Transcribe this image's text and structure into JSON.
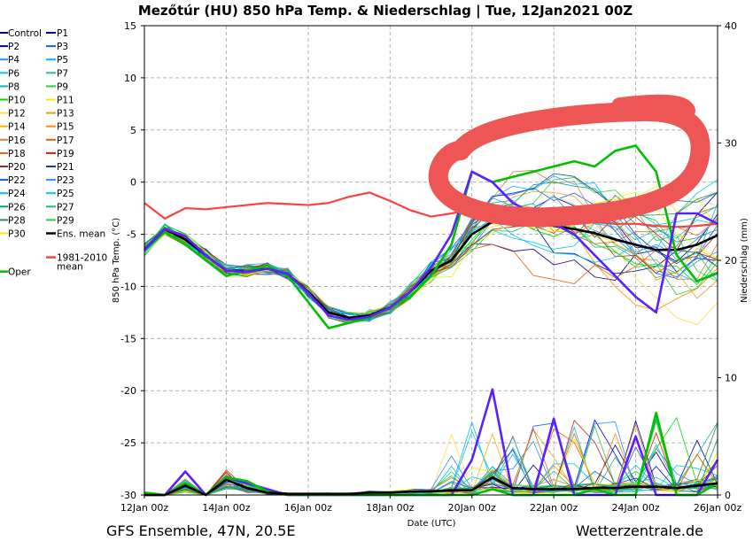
{
  "chart_data": {
    "type": "line",
    "title": "Mezőtúr  (HU)  850 hPa Temp. & Niederschlag | Tue, 12Jan2021 00Z",
    "xlabel": "Date (UTC)",
    "ylabel": "850 hPa Temp. (°C)",
    "y2label": "Niederschlag (mm)",
    "footer_left": "GFS Ensemble, 47N, 20.5E",
    "footer_right": "Wetterzentrale.de",
    "xticks": [
      "12Jan 00z",
      "14Jan 00z",
      "16Jan 00z",
      "18Jan 00z",
      "20Jan 00z",
      "22Jan 00z",
      "24Jan 00z",
      "26Jan 00z"
    ],
    "xlim": [
      0,
      336
    ],
    "ylim": [
      -30,
      15
    ],
    "y2lim": [
      0,
      40
    ],
    "yticks": [
      -30,
      -25,
      -20,
      -15,
      -10,
      -5,
      0,
      5,
      10,
      15
    ],
    "y2ticks": [
      0,
      10,
      20,
      30,
      40
    ],
    "grid": true,
    "legend_placement": "left",
    "legend": [
      {
        "name": "Control",
        "color": "#000080"
      },
      {
        "name": "P1",
        "color": "#00008b"
      },
      {
        "name": "P2",
        "color": "#0000cd"
      },
      {
        "name": "P3",
        "color": "#1e5aff"
      },
      {
        "name": "P4",
        "color": "#1e90ff"
      },
      {
        "name": "P5",
        "color": "#00b4ff"
      },
      {
        "name": "P6",
        "color": "#00ced1"
      },
      {
        "name": "P7",
        "color": "#20c0a0"
      },
      {
        "name": "P8",
        "color": "#20b2aa"
      },
      {
        "name": "P9",
        "color": "#32cd32"
      },
      {
        "name": "P10",
        "color": "#00e000"
      },
      {
        "name": "P11",
        "color": "#f0f000"
      },
      {
        "name": "P12",
        "color": "#f5e050"
      },
      {
        "name": "P13",
        "color": "#daa520"
      },
      {
        "name": "P14",
        "color": "#ffb000"
      },
      {
        "name": "P15",
        "color": "#ff8c00"
      },
      {
        "name": "P16",
        "color": "#cd853f"
      },
      {
        "name": "P17",
        "color": "#e06010"
      },
      {
        "name": "P18",
        "color": "#d2691e"
      },
      {
        "name": "P19",
        "color": "#cc2200"
      },
      {
        "name": "P20",
        "color": "#b22222"
      },
      {
        "name": "P21",
        "color": "#1040a0"
      },
      {
        "name": "P22",
        "color": "#1060d0"
      },
      {
        "name": "P23",
        "color": "#3090ff"
      },
      {
        "name": "P24",
        "color": "#00bfff"
      },
      {
        "name": "P25",
        "color": "#00ced1"
      },
      {
        "name": "P26",
        "color": "#00a080"
      },
      {
        "name": "P27",
        "color": "#20c060"
      },
      {
        "name": "P28",
        "color": "#2e8b57"
      },
      {
        "name": "P29",
        "color": "#32cd32"
      },
      {
        "name": "P30",
        "color": "#f0f000"
      },
      {
        "name": "Ens. mean",
        "color": "#000000"
      },
      {
        "name": "1981-2010 mean",
        "color": "#ff4040"
      },
      {
        "name": "Oper",
        "color": "#00c000"
      }
    ],
    "series": [
      {
        "name": "Ens. mean",
        "color": "#000000",
        "x": [
          0,
          12,
          24,
          36,
          48,
          60,
          72,
          84,
          96,
          108,
          120,
          132,
          144,
          156,
          168,
          180,
          192,
          204,
          216,
          228,
          240,
          252,
          264,
          276,
          288,
          300,
          312,
          324,
          336
        ],
        "y": [
          -6.5,
          -4.5,
          -5.5,
          -7,
          -8.5,
          -8.5,
          -8.3,
          -8.8,
          -10.5,
          -12.5,
          -13,
          -12.8,
          -12,
          -10.5,
          -8.5,
          -7.5,
          -5,
          -3.8,
          -3.5,
          -3.8,
          -4.2,
          -4.5,
          -4.9,
          -5.5,
          -6,
          -6.5,
          -6.5,
          -6,
          -5.1
        ]
      },
      {
        "name": "1981-2010 mean",
        "color": "#ff4040",
        "x": [
          0,
          12,
          24,
          36,
          48,
          60,
          72,
          84,
          96,
          108,
          120,
          132,
          144,
          156,
          168,
          180,
          192,
          204,
          216,
          228,
          240,
          252,
          264,
          276,
          288,
          300,
          312,
          324,
          336
        ],
        "y": [
          -2,
          -3.5,
          -2.5,
          -2.6,
          -2.4,
          -2.2,
          -2.0,
          -2.1,
          -2.2,
          -2.0,
          -1.4,
          -1.0,
          -1.8,
          -2.7,
          -3.3,
          -3.0,
          -2.6,
          -2.7,
          -3.0,
          -3.2,
          -3.5,
          -3.6,
          -3.8,
          -4.0,
          -4.0,
          -4.2,
          -4.3,
          -4.2,
          -4.0
        ]
      },
      {
        "name": "Oper",
        "color": "#00c000",
        "x": [
          0,
          12,
          24,
          36,
          48,
          60,
          72,
          84,
          96,
          108,
          120,
          132,
          144,
          156,
          168,
          180,
          192,
          204,
          216,
          228,
          240,
          252,
          264,
          276,
          288,
          300,
          312,
          324,
          336
        ],
        "y": [
          -6.5,
          -4.8,
          -6,
          -7.5,
          -9,
          -8.5,
          -8.0,
          -9.0,
          -11.5,
          -14,
          -13.5,
          -13,
          -12,
          -11,
          -9,
          -6,
          1,
          0,
          0.5,
          1,
          1.5,
          2,
          1.5,
          3,
          3.5,
          1,
          -7,
          -9.5,
          -8.7
        ]
      },
      {
        "name": "P21",
        "color": "#5a20ff",
        "x": [
          0,
          12,
          24,
          36,
          48,
          60,
          72,
          84,
          96,
          108,
          120,
          132,
          144,
          156,
          168,
          180,
          192,
          204,
          216,
          228,
          240,
          252,
          264,
          276,
          288,
          300,
          312,
          324,
          336
        ],
        "y": [
          -6.5,
          -4.5,
          -5.2,
          -7,
          -8.5,
          -8.6,
          -8.3,
          -8.8,
          -10.6,
          -12.8,
          -13.2,
          -12.9,
          -12,
          -10.5,
          -8.2,
          -5,
          1,
          0,
          -2,
          -3,
          -4,
          -5,
          -7,
          -9,
          -11,
          -12.5,
          -3,
          -3,
          -4
        ]
      }
    ],
    "precip_series": [
      {
        "name": "P21",
        "color": "#5a20ff",
        "x": [
          0,
          12,
          24,
          36,
          48,
          60,
          72,
          84,
          96,
          108,
          120,
          132,
          144,
          156,
          168,
          180,
          192,
          204,
          216,
          228,
          240,
          252,
          264,
          276,
          288,
          300,
          312,
          324,
          336
        ],
        "y": [
          0,
          0,
          2,
          0,
          1.5,
          1,
          0.5,
          0,
          0,
          0,
          0,
          0,
          0,
          0,
          0,
          0,
          3,
          9,
          0,
          0,
          6.5,
          0,
          0,
          0,
          5,
          0,
          0,
          0,
          3
        ]
      },
      {
        "name": "Oper",
        "color": "#00c000",
        "x": [
          0,
          12,
          24,
          36,
          48,
          60,
          72,
          84,
          96,
          108,
          120,
          132,
          144,
          156,
          168,
          180,
          192,
          204,
          216,
          228,
          240,
          252,
          264,
          276,
          288,
          300,
          312,
          324,
          336
        ],
        "y": [
          0.2,
          0,
          1,
          0,
          1.5,
          1.2,
          0.3,
          0,
          0,
          0,
          0,
          0,
          0,
          0,
          0,
          0,
          0,
          0.5,
          0,
          0,
          0,
          0,
          0.5,
          0,
          0,
          7,
          0,
          0,
          1
        ]
      },
      {
        "name": "Ens. mean",
        "color": "#000000",
        "x": [
          0,
          12,
          24,
          36,
          48,
          60,
          72,
          84,
          96,
          108,
          120,
          132,
          144,
          156,
          168,
          180,
          192,
          204,
          216,
          228,
          240,
          252,
          264,
          276,
          288,
          300,
          312,
          324,
          336
        ],
        "y": [
          0,
          0,
          0.8,
          0,
          1.3,
          0.6,
          0.2,
          0.1,
          0.1,
          0.1,
          0.1,
          0.2,
          0.2,
          0.3,
          0.3,
          0.4,
          0.4,
          1.5,
          0.6,
          0.5,
          0.5,
          0.5,
          0.6,
          0.6,
          0.7,
          0.7,
          0.6,
          0.8,
          1
        ]
      }
    ]
  }
}
